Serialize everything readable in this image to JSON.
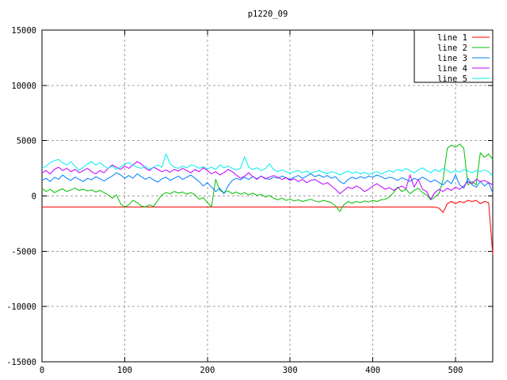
{
  "window": {
    "background": "#ffffff"
  },
  "chart_data": {
    "type": "line",
    "title": "p1220_09",
    "xlabel": "",
    "ylabel": "",
    "xlim": [
      0,
      545
    ],
    "ylim": [
      -15000,
      15000
    ],
    "xticks": [
      0,
      100,
      200,
      300,
      400,
      500
    ],
    "yticks": [
      -15000,
      -10000,
      -5000,
      0,
      5000,
      10000,
      15000
    ],
    "grid": true,
    "grid_style": "dashed",
    "legend_position": "top-right",
    "x_start": 0,
    "x_step": 5,
    "colors": {
      "grid": "#a0a0a0",
      "border": "#000000",
      "text": "#000000"
    },
    "series": [
      {
        "name": "line 1",
        "color": "#ff0000",
        "values": [
          -1000,
          -1000,
          -1000,
          -1000,
          -1000,
          -1000,
          -1000,
          -1000,
          -1000,
          -1000,
          -1000,
          -1000,
          -1000,
          -1000,
          -1000,
          -1000,
          -1000,
          -1000,
          -1000,
          -1000,
          -1000,
          -1000,
          -1000,
          -1000,
          -1000,
          -1000,
          -1000,
          -1000,
          -1000,
          -1000,
          -1000,
          -1000,
          -1000,
          -1000,
          -1000,
          -1000,
          -1000,
          -1000,
          -1000,
          -1000,
          -1000,
          -1000,
          -1000,
          -1000,
          -1000,
          -1000,
          -1000,
          -1000,
          -1000,
          -1000,
          -1000,
          -1000,
          -1000,
          -1000,
          -1000,
          -1000,
          -1000,
          -1000,
          -1000,
          -1000,
          -1000,
          -1000,
          -1000,
          -1000,
          -1000,
          -1000,
          -1000,
          -1000,
          -1000,
          -1000,
          -1000,
          -1000,
          -1000,
          -1000,
          -1000,
          -1000,
          -1000,
          -1000,
          -1000,
          -1000,
          -1000,
          -1000,
          -1000,
          -1000,
          -1000,
          -1000,
          -1000,
          -1000,
          -1000,
          -1000,
          -1000,
          -1000,
          -1000,
          -1000,
          -1000,
          -1000,
          -1100,
          -1500,
          -700,
          -500,
          -700,
          -500,
          -600,
          -400,
          -500,
          -400,
          -700,
          -500,
          -600,
          -5300
        ]
      },
      {
        "name": "line 2",
        "color": "#00c000",
        "values": [
          700,
          400,
          600,
          300,
          500,
          650,
          400,
          550,
          700,
          500,
          600,
          450,
          550,
          350,
          500,
          300,
          100,
          -200,
          100,
          -700,
          -1000,
          -800,
          -400,
          -600,
          -900,
          -1000,
          -800,
          -950,
          -400,
          100,
          300,
          200,
          400,
          250,
          350,
          150,
          300,
          100,
          -300,
          -150,
          -600,
          -1000,
          1500,
          500,
          300,
          450,
          200,
          350,
          150,
          300,
          100,
          250,
          50,
          150,
          -100,
          50,
          -200,
          -350,
          -200,
          -400,
          -300,
          -450,
          -350,
          -500,
          -400,
          -300,
          -450,
          -550,
          -400,
          -500,
          -600,
          -900,
          -1400,
          -800,
          -500,
          -650,
          -500,
          -600,
          -450,
          -550,
          -400,
          -500,
          -350,
          -300,
          -100,
          300,
          800,
          400,
          600,
          200,
          500,
          700,
          300,
          100,
          -350,
          -100,
          200,
          1500,
          4300,
          4600,
          4400,
          4700,
          4300,
          1000,
          1300,
          1000,
          3900,
          3500,
          3800,
          3300
        ]
      },
      {
        "name": "line 3",
        "color": "#0080ff",
        "values": [
          1400,
          1600,
          1300,
          1700,
          1500,
          1900,
          1600,
          1400,
          1700,
          1500,
          1300,
          1600,
          1450,
          1750,
          1550,
          1350,
          1600,
          1800,
          2100,
          1900,
          1600,
          1850,
          1600,
          2000,
          1750,
          1500,
          1700,
          1450,
          1250,
          1550,
          1700,
          1400,
          1600,
          1800,
          1500,
          1700,
          1900,
          1600,
          1300,
          900,
          1200,
          800,
          400,
          700,
          200,
          900,
          1400,
          1600,
          1450,
          1700,
          1500,
          1750,
          1550,
          1800,
          1600,
          1500,
          1700,
          1600,
          1800,
          1650,
          1500,
          1700,
          1850,
          1600,
          1800,
          2000,
          1750,
          1900,
          1700,
          1850,
          1600,
          1750,
          1300,
          1100,
          1500,
          1700,
          1550,
          1750,
          1600,
          1800,
          1700,
          1900,
          1750,
          1550,
          1700,
          1600,
          1400,
          1650,
          1500,
          1300,
          1600,
          1450,
          1700,
          1500,
          1250,
          1450,
          1200,
          1000,
          1400,
          1100,
          1900,
          1000,
          700,
          1600,
          1000,
          800,
          1300,
          900,
          1200,
          300
        ]
      },
      {
        "name": "line 4",
        "color": "#c000ff",
        "values": [
          2100,
          2300,
          2000,
          2400,
          2600,
          2300,
          2500,
          2200,
          2400,
          2100,
          2300,
          2500,
          2200,
          2000,
          2300,
          2100,
          2500,
          2800,
          2600,
          2400,
          2700,
          2500,
          2800,
          3100,
          2900,
          2500,
          2300,
          2600,
          2400,
          2200,
          2350,
          2150,
          2400,
          2250,
          2500,
          2300,
          2100,
          2400,
          2200,
          2550,
          2300,
          2000,
          2200,
          1900,
          2100,
          2400,
          2200,
          1900,
          1600,
          1800,
          2100,
          1750,
          1500,
          1800,
          1550,
          1700,
          1850,
          1700,
          1500,
          1650,
          1400,
          1550,
          1300,
          1500,
          1200,
          1400,
          1500,
          1250,
          1050,
          1200,
          900,
          600,
          200,
          500,
          800,
          650,
          900,
          700,
          400,
          600,
          900,
          1100,
          850,
          600,
          750,
          500,
          700,
          900,
          650,
          1900,
          800,
          1500,
          600,
          400,
          -300,
          300,
          600,
          400,
          700,
          500,
          800,
          600,
          900,
          1300,
          1100,
          1500,
          1300,
          1400,
          1200,
          1000
        ]
      },
      {
        "name": "line 5",
        "color": "#00eeee",
        "values": [
          2500,
          2700,
          3000,
          3200,
          3300,
          3000,
          2800,
          3100,
          2700,
          2300,
          2600,
          2900,
          3100,
          2800,
          3000,
          2700,
          2500,
          2700,
          2400,
          2600,
          2900,
          3000,
          2800,
          2600,
          2500,
          2700,
          2400,
          2600,
          2800,
          2600,
          3800,
          2900,
          2600,
          2500,
          2700,
          2550,
          2800,
          2700,
          2500,
          2650,
          2450,
          2600,
          2400,
          2800,
          2550,
          2700,
          2500,
          2350,
          2500,
          3550,
          2600,
          2400,
          2550,
          2300,
          2450,
          2900,
          2400,
          2200,
          2350,
          2200,
          2050,
          2200,
          2300,
          2100,
          2250,
          2050,
          2200,
          2300,
          2150,
          2000,
          2200,
          2100,
          1900,
          2100,
          2250,
          2050,
          2200,
          2000,
          2150,
          1950,
          2100,
          2200,
          2000,
          2150,
          2300,
          2150,
          2400,
          2250,
          2500,
          2300,
          2100,
          2350,
          2550,
          2300,
          2100,
          2400,
          2200,
          2500,
          2300,
          2100,
          2300,
          2150,
          2400,
          2250,
          2100,
          2300,
          2200,
          2350,
          2200,
          1800
        ]
      }
    ]
  }
}
